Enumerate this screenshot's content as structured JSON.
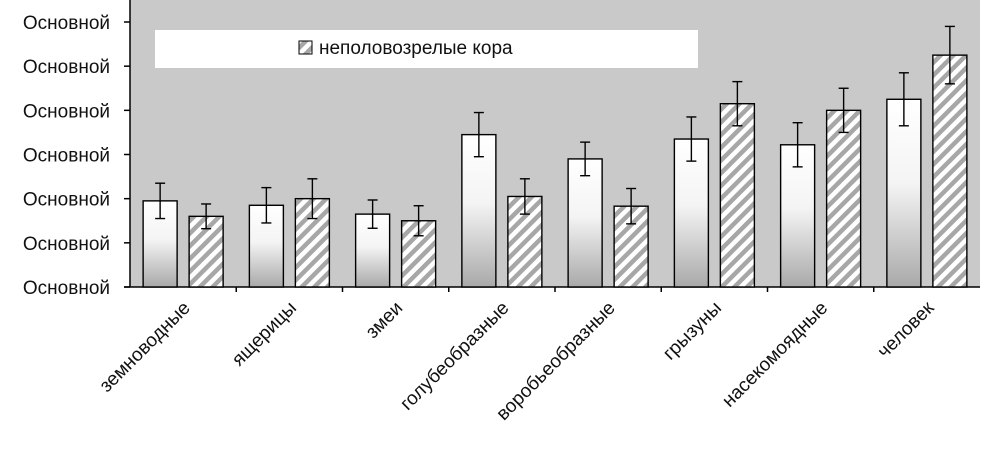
{
  "chart_data": {
    "type": "bar",
    "title": "",
    "xlabel": "",
    "ylabel": "",
    "y_tick_labels": [
      "Основной",
      "Основной",
      "Основной",
      "Основной",
      "Основной",
      "Основной",
      "Основной"
    ],
    "ylim": [
      0,
      6
    ],
    "grid": false,
    "legend_placement": "top",
    "categories": [
      "земноводные",
      "ящерицы",
      "змеи",
      "голубеобразные",
      "воробьеобразные",
      "грызуны",
      "насекомоядные",
      "человек"
    ],
    "series": [
      {
        "name": "",
        "style": "gradient-white",
        "values": [
          1.95,
          1.85,
          1.65,
          3.45,
          2.9,
          3.35,
          3.22,
          4.25
        ],
        "errors": [
          0.4,
          0.4,
          0.32,
          0.5,
          0.38,
          0.5,
          0.5,
          0.6
        ]
      },
      {
        "name": "неполовозрелые кора",
        "style": "hatched",
        "values": [
          1.6,
          2.0,
          1.5,
          2.05,
          1.83,
          4.15,
          4.0,
          5.25
        ],
        "errors": [
          0.28,
          0.45,
          0.34,
          0.4,
          0.4,
          0.5,
          0.5,
          0.65
        ]
      }
    ],
    "colors": {
      "plot_background": "#c9c9c9",
      "bar_outline": "#000000",
      "gradient_top": "#ffffff",
      "gradient_bottom": "#a8a8a8",
      "hatch_line": "#a7a7a7",
      "legend_background": "#ffffff"
    }
  }
}
